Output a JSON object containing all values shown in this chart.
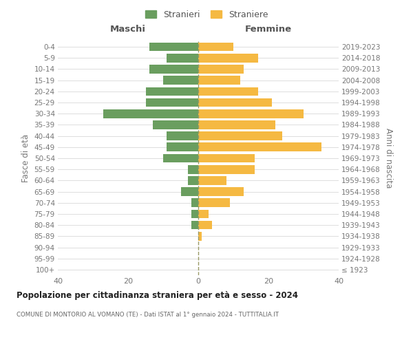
{
  "age_groups": [
    "100+",
    "95-99",
    "90-94",
    "85-89",
    "80-84",
    "75-79",
    "70-74",
    "65-69",
    "60-64",
    "55-59",
    "50-54",
    "45-49",
    "40-44",
    "35-39",
    "30-34",
    "25-29",
    "20-24",
    "15-19",
    "10-14",
    "5-9",
    "0-4"
  ],
  "birth_years": [
    "≤ 1923",
    "1924-1928",
    "1929-1933",
    "1934-1938",
    "1939-1943",
    "1944-1948",
    "1949-1953",
    "1954-1958",
    "1959-1963",
    "1964-1968",
    "1969-1973",
    "1974-1978",
    "1979-1983",
    "1984-1988",
    "1989-1993",
    "1994-1998",
    "1999-2003",
    "2004-2008",
    "2009-2013",
    "2014-2018",
    "2019-2023"
  ],
  "males": [
    0,
    0,
    0,
    0,
    2,
    2,
    2,
    5,
    3,
    3,
    10,
    9,
    9,
    13,
    27,
    15,
    15,
    10,
    14,
    9,
    14
  ],
  "females": [
    0,
    0,
    0,
    1,
    4,
    3,
    9,
    13,
    8,
    16,
    16,
    35,
    24,
    22,
    30,
    21,
    17,
    12,
    13,
    17,
    10
  ],
  "male_color": "#6a9e5f",
  "female_color": "#f5b942",
  "center_line_color": "#999966",
  "background_color": "#ffffff",
  "grid_color": "#dddddd",
  "title": "Popolazione per cittadinanza straniera per età e sesso - 2024",
  "subtitle": "COMUNE DI MONTORIO AL VOMANO (TE) - Dati ISTAT al 1° gennaio 2024 - TUTTITALIA.IT",
  "header_left": "Maschi",
  "header_right": "Femmine",
  "ylabel_left": "Fasce di età",
  "ylabel_right": "Anni di nascita",
  "xlim": 40,
  "legend_stranieri": "Stranieri",
  "legend_straniere": "Straniere"
}
